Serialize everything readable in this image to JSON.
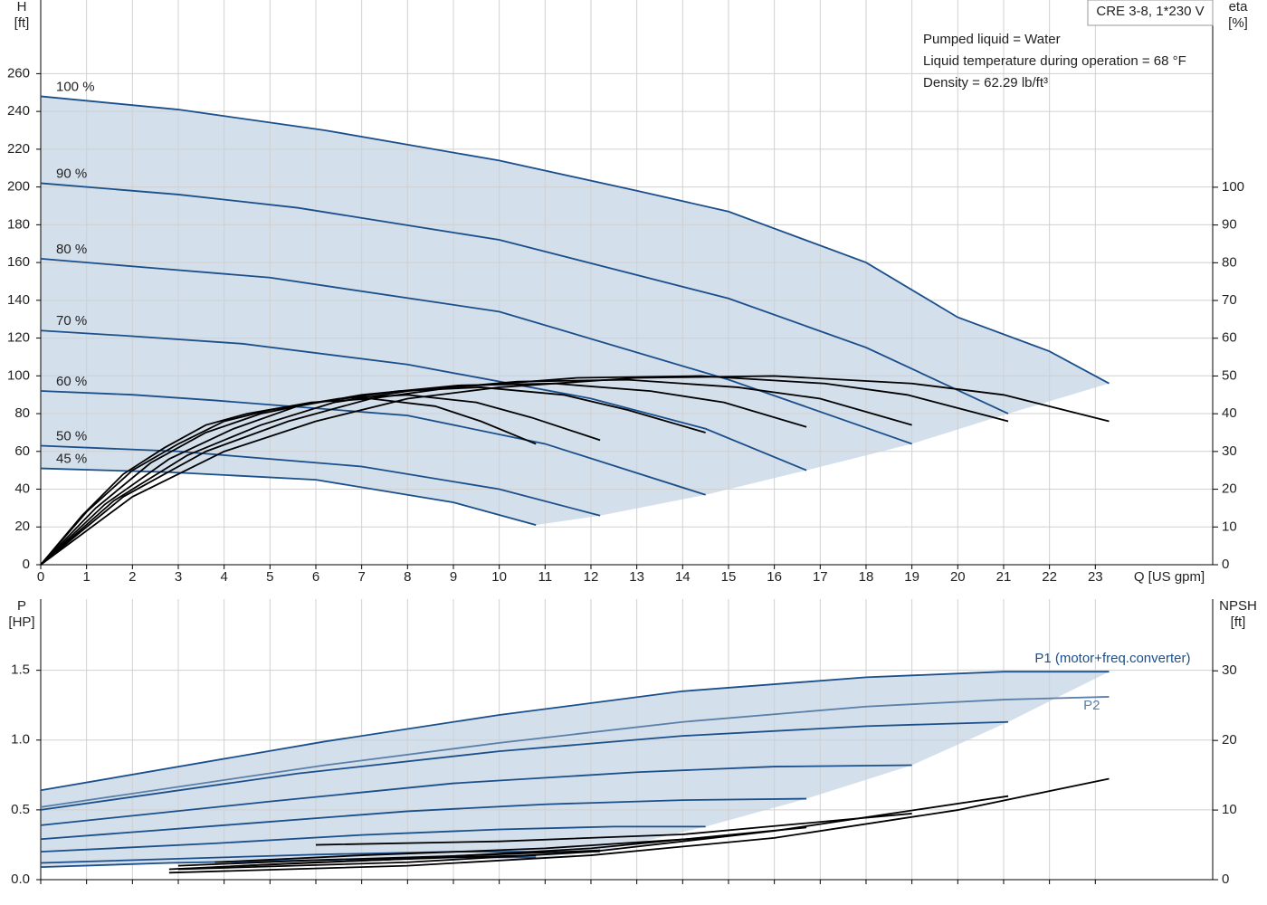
{
  "chart_data": [
    {
      "type": "line",
      "title": "CRE 3-8, 1*230 V",
      "annotations": [
        "Pumped liquid = Water",
        "Liquid temperature during operation = 68 °F",
        "Density = 62.29 lb/ft³"
      ],
      "xlabel": "Q [US gpm]",
      "ylabel": "H",
      "yunit": "[ft]",
      "y2label": "eta",
      "y2unit": "[%]",
      "xlim": [
        0,
        25.56
      ],
      "ylim": [
        0,
        299
      ],
      "y2lim": [
        0,
        149.6
      ],
      "xticks": [
        0,
        1,
        2,
        3,
        4,
        5,
        6,
        7,
        8,
        9,
        10,
        11,
        12,
        13,
        14,
        15,
        16,
        17,
        18,
        19,
        20,
        21,
        22,
        23
      ],
      "yticks": [
        0,
        20,
        40,
        60,
        80,
        100,
        120,
        140,
        160,
        180,
        200,
        220,
        240,
        260
      ],
      "y2ticks": [
        0,
        10,
        20,
        30,
        40,
        50,
        60,
        70,
        80,
        90,
        100
      ],
      "grid": true,
      "curve_color": "#1a4f8b",
      "area_color": "#d3dfeb",
      "series": [
        {
          "name": "100 %",
          "color": "#1a4f8b",
          "x": [
            0,
            3,
            6.2,
            10,
            13,
            15,
            18,
            20,
            22,
            23.3
          ],
          "values": [
            248,
            241,
            230,
            214,
            198,
            187,
            160,
            131,
            113,
            96
          ]
        },
        {
          "name": "90 %",
          "color": "#1a4f8b",
          "x": [
            0,
            3,
            5.6,
            10,
            15,
            18,
            21.1
          ],
          "values": [
            202,
            196,
            189,
            172,
            141,
            115,
            80
          ]
        },
        {
          "name": "80 %",
          "color": "#1a4f8b",
          "x": [
            0,
            2.5,
            5,
            10,
            15,
            19
          ],
          "values": [
            162,
            157,
            152,
            134,
            98,
            64
          ]
        },
        {
          "name": "70 %",
          "color": "#1a4f8b",
          "x": [
            0,
            2,
            4.4,
            8,
            12,
            14.5,
            16.7
          ],
          "values": [
            124,
            121,
            117,
            106,
            88,
            72,
            50
          ]
        },
        {
          "name": "60 %",
          "color": "#1a4f8b",
          "x": [
            0,
            2,
            3.8,
            8,
            11,
            14.5
          ],
          "values": [
            92,
            90,
            87,
            79,
            64,
            37
          ]
        },
        {
          "name": "50 %",
          "color": "#1a4f8b",
          "x": [
            0,
            3,
            7,
            10,
            12.2
          ],
          "values": [
            63,
            60,
            52,
            40,
            26
          ]
        },
        {
          "name": "45 %",
          "color": "#1a4f8b",
          "x": [
            0,
            2.8,
            6,
            9,
            10.8
          ],
          "values": [
            51,
            49,
            45,
            33,
            21
          ]
        },
        {
          "axis": "y2",
          "color": "#000000",
          "x": [
            0,
            2,
            4,
            6,
            8,
            10,
            13,
            16,
            19,
            21,
            23.3
          ],
          "values": [
            0,
            18,
            30,
            38,
            44,
            47,
            49.5,
            50,
            48,
            45,
            38
          ]
        },
        {
          "axis": "y2",
          "color": "#000000",
          "x": [
            0,
            1.8,
            3.6,
            5.4,
            7.2,
            9,
            11.7,
            14.4,
            17.1,
            18.9,
            21.1
          ],
          "values": [
            0,
            18,
            30,
            38,
            44,
            47,
            49.5,
            50,
            48,
            45,
            38
          ]
        },
        {
          "axis": "y2",
          "color": "#000000",
          "x": [
            0,
            1.6,
            3.2,
            4.8,
            6.4,
            8,
            10.4,
            12.8,
            15.2,
            17,
            19
          ],
          "values": [
            0,
            17,
            29,
            37,
            43,
            46,
            48.5,
            49,
            47,
            44,
            37
          ]
        },
        {
          "axis": "y2",
          "color": "#000000",
          "x": [
            0,
            1.4,
            2.8,
            4.2,
            5.6,
            7,
            9.1,
            11.2,
            13.3,
            14.9,
            16.7
          ],
          "values": [
            0,
            16,
            28,
            36,
            42,
            45,
            47.5,
            48,
            46,
            43,
            36.5
          ]
        },
        {
          "axis": "y2",
          "color": "#000000",
          "x": [
            0,
            1.2,
            2.4,
            3.6,
            4.8,
            6,
            7.8,
            9.6,
            11.4,
            12.8,
            14.5
          ],
          "values": [
            0,
            15,
            27,
            35,
            40,
            43,
            46,
            47,
            45,
            41,
            35
          ]
        },
        {
          "axis": "y2",
          "color": "#000000",
          "x": [
            0,
            1,
            2,
            3,
            4,
            5,
            6.5,
            8,
            9.5,
            10.7,
            12.2
          ],
          "values": [
            0,
            14,
            25,
            32,
            38,
            41,
            44,
            45,
            43,
            39,
            33
          ]
        },
        {
          "axis": "y2",
          "color": "#000000",
          "x": [
            0,
            0.9,
            1.8,
            2.7,
            3.6,
            4.5,
            5.9,
            7.2,
            8.6,
            9.6,
            10.8
          ],
          "values": [
            0,
            13,
            24,
            31,
            37,
            40,
            43,
            44,
            42,
            38,
            32
          ]
        }
      ]
    },
    {
      "type": "line",
      "ylabel": "P",
      "yunit": "[HP]",
      "y2label": "NPSH",
      "y2unit": "[ft]",
      "xlim": [
        0,
        25.56
      ],
      "ylim": [
        0,
        2.01
      ],
      "y2lim": [
        0,
        40.3
      ],
      "xticks": [
        0,
        1,
        2,
        3,
        4,
        5,
        6,
        7,
        8,
        9,
        10,
        11,
        12,
        13,
        14,
        15,
        16,
        17,
        18,
        19,
        20,
        21,
        22,
        23
      ],
      "yticks": [
        {
          "value": 0,
          "label": "0.0"
        },
        {
          "value": 0.5,
          "label": "0.5"
        },
        {
          "value": 1,
          "label": "1.0"
        },
        {
          "value": 1.5,
          "label": "1.5"
        }
      ],
      "y2ticks": [
        0,
        10,
        20,
        30
      ],
      "grid": true,
      "curve_color": "#1a4f8b",
      "area_color": "#d3dfeb",
      "series": [
        {
          "name": "P1 (motor+freq.converter)",
          "color": "#1a4f8b",
          "x": [
            0,
            6.2,
            10,
            14,
            18,
            21,
            23.3
          ],
          "values": [
            0.64,
            0.99,
            1.18,
            1.35,
            1.45,
            1.49,
            1.49
          ]
        },
        {
          "color": "#1a4f8b",
          "x": [
            0,
            5.6,
            10,
            14,
            18,
            21.1
          ],
          "values": [
            0.5,
            0.76,
            0.92,
            1.03,
            1.1,
            1.13
          ]
        },
        {
          "color": "#1a4f8b",
          "x": [
            0,
            5,
            9,
            13,
            16,
            19
          ],
          "values": [
            0.39,
            0.56,
            0.69,
            0.77,
            0.81,
            0.82
          ]
        },
        {
          "color": "#1a4f8b",
          "x": [
            0,
            4.4,
            8,
            11,
            14,
            16.7
          ],
          "values": [
            0.29,
            0.4,
            0.49,
            0.54,
            0.57,
            0.58
          ]
        },
        {
          "color": "#1a4f8b",
          "x": [
            0,
            3.8,
            7,
            10,
            12.5,
            14.5
          ],
          "values": [
            0.2,
            0.26,
            0.32,
            0.36,
            0.38,
            0.38
          ]
        },
        {
          "color": "#1a4f8b",
          "x": [
            0,
            3,
            6,
            9,
            12.2
          ],
          "values": [
            0.12,
            0.15,
            0.18,
            0.2,
            0.2
          ]
        },
        {
          "color": "#1a4f8b",
          "x": [
            0,
            2.8,
            6,
            9,
            10.8
          ],
          "values": [
            0.09,
            0.12,
            0.14,
            0.16,
            0.16
          ]
        },
        {
          "name": "P2",
          "color": "#5a7fa8",
          "x": [
            0,
            6.2,
            10,
            14,
            18,
            21,
            23.3
          ],
          "values": [
            0.52,
            0.82,
            0.98,
            1.13,
            1.24,
            1.29,
            1.31
          ]
        },
        {
          "axis": "y2",
          "color": "#000000",
          "x": [
            2.8,
            8,
            12,
            16,
            20,
            23.3
          ],
          "values": [
            1,
            2,
            3.5,
            6,
            10,
            14.5
          ]
        },
        {
          "axis": "y2",
          "color": "#000000",
          "x": [
            3,
            8,
            12,
            16,
            21.1
          ],
          "values": [
            1.5,
            2.5,
            4,
            7,
            12
          ]
        },
        {
          "axis": "y2",
          "color": "#000000",
          "x": [
            6,
            10,
            14,
            19
          ],
          "values": [
            5,
            5.5,
            6.5,
            9.5
          ]
        },
        {
          "axis": "y2",
          "color": "#000000",
          "x": [
            4.4,
            8,
            12,
            16.7
          ],
          "values": [
            2,
            3,
            4.5,
            7.5
          ]
        },
        {
          "axis": "y2",
          "color": "#000000",
          "x": [
            3.8,
            7,
            11,
            14.5
          ],
          "values": [
            2.5,
            3.5,
            4.5,
            6
          ]
        },
        {
          "axis": "y2",
          "color": "#000000",
          "x": [
            3,
            6,
            9,
            12.2
          ],
          "values": [
            2,
            2.8,
            3.4,
            4.2
          ]
        },
        {
          "axis": "y2",
          "color": "#000000",
          "x": [
            2.8,
            6,
            9,
            10.8
          ],
          "values": [
            1.5,
            2.5,
            3.2,
            3.5
          ]
        }
      ]
    }
  ]
}
